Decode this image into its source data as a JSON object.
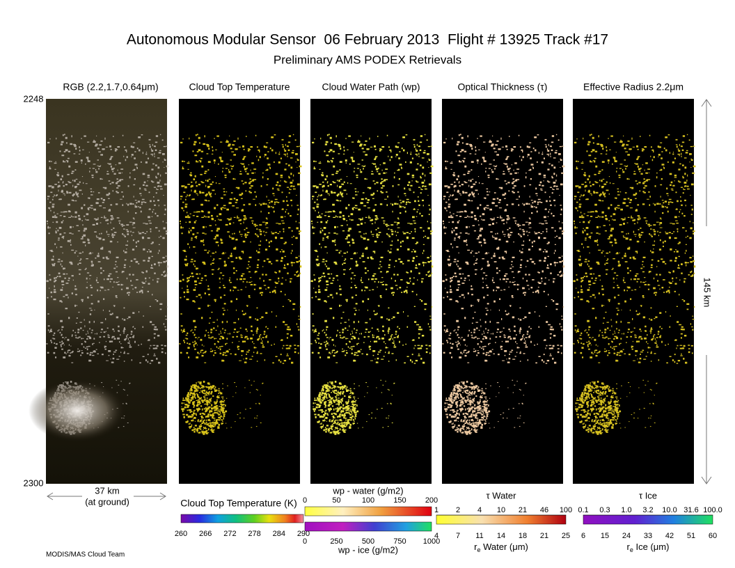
{
  "header": {
    "title": "Autonomous Modular Sensor  06 February 2013  Flight # 13925 Track #17",
    "subtitle": "Preliminary AMS PODEX Retrievals"
  },
  "panels": [
    {
      "title": "RGB (2.2,1.7,0.64μm)"
    },
    {
      "title": "Cloud Top Temperature"
    },
    {
      "title": "Cloud Water Path (wp)"
    },
    {
      "title": "Optical Thickness (τ)"
    },
    {
      "title": "Effective Radius 2.2μm"
    }
  ],
  "time_labels": {
    "start": "2248",
    "end": "2300"
  },
  "scale": {
    "width": "37 km",
    "width_note": "(at ground)",
    "length": "145 km"
  },
  "colorbars": {
    "ctt": {
      "title": "Cloud Top Temperature (K)",
      "ticks": [
        "260",
        "266",
        "272",
        "278",
        "284",
        "290"
      ]
    },
    "wp_water": {
      "title": "wp - water (g/m2)",
      "ticks": [
        "0",
        "50",
        "100",
        "150",
        "200"
      ]
    },
    "wp_ice": {
      "title": "wp - ice (g/m2)",
      "ticks": [
        "0",
        "250",
        "500",
        "750",
        "1000"
      ]
    },
    "tau_water": {
      "title": "τ Water",
      "ticks": [
        "1",
        "2",
        "4",
        "10",
        "21",
        "46",
        "100"
      ]
    },
    "re_water": {
      "title": {
        "r": "r",
        "sub": "e",
        "rest": " Water (μm)"
      },
      "ticks": [
        "4",
        "7",
        "11",
        "14",
        "18",
        "21",
        "25"
      ]
    },
    "tau_ice": {
      "title": "τ Ice",
      "ticks": [
        "0.1",
        "0.3",
        "1.0",
        "3.2",
        "10.0",
        "31.6",
        "100.0"
      ]
    },
    "re_ice": {
      "title": {
        "r": "r",
        "sub": "e",
        "rest": " Ice (μm)"
      },
      "ticks": [
        "6",
        "15",
        "24",
        "33",
        "42",
        "51",
        "60"
      ]
    }
  },
  "footer": {
    "credit": "MODIS/MAS Cloud Team"
  }
}
